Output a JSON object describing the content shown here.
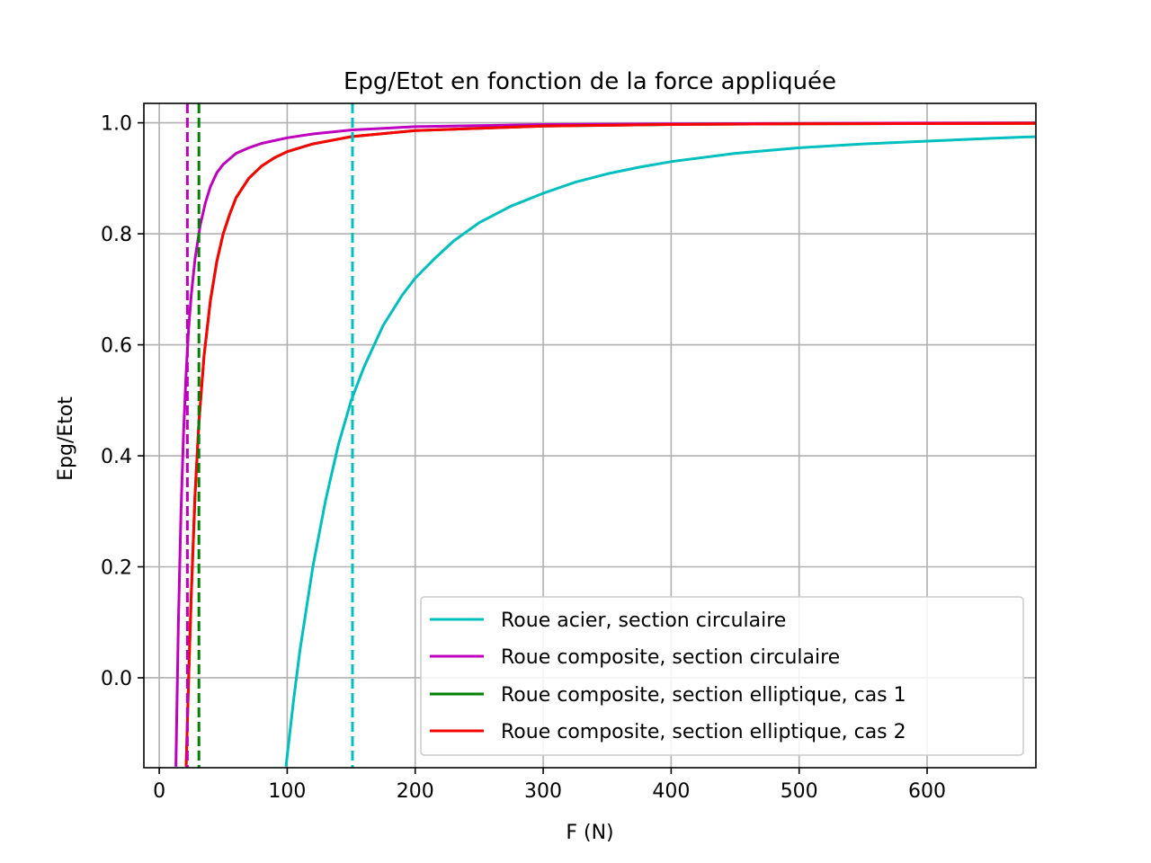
{
  "chart_data": {
    "type": "line",
    "title": "Epg/Etot en fonction de la force appliquée",
    "xlabel": "F (N)",
    "ylabel": "Epg/Etot",
    "xlim": [
      -12,
      685
    ],
    "ylim": [
      -0.162,
      1.035
    ],
    "grid": true,
    "legend_position": "lower right",
    "x_ticks": [
      0,
      100,
      200,
      300,
      400,
      500,
      600
    ],
    "x_tick_labels": [
      "0",
      "100",
      "200",
      "300",
      "400",
      "500",
      "600"
    ],
    "y_ticks": [
      0.0,
      0.2,
      0.4,
      0.6,
      0.8,
      1.0
    ],
    "y_tick_labels": [
      "0.0",
      "0.2",
      "0.4",
      "0.6",
      "0.8",
      "1.0"
    ],
    "series": [
      {
        "name": "Roue acier, section circulaire",
        "color": "#00bfbf",
        "x": [
          99,
          105,
          110,
          120,
          130,
          140,
          150,
          160,
          175,
          190,
          200,
          215,
          230,
          250,
          275,
          300,
          325,
          350,
          375,
          400,
          450,
          500,
          550,
          600,
          650,
          685
        ],
        "y": [
          -0.16,
          -0.04,
          0.05,
          0.2,
          0.32,
          0.42,
          0.5,
          0.56,
          0.635,
          0.69,
          0.72,
          0.755,
          0.787,
          0.82,
          0.85,
          0.873,
          0.893,
          0.908,
          0.92,
          0.93,
          0.945,
          0.955,
          0.962,
          0.967,
          0.972,
          0.975
        ]
      },
      {
        "name": "Roue composite, section circulaire",
        "color": "#bf00bf",
        "x": [
          13,
          15,
          17,
          19,
          21,
          23,
          25,
          28,
          32,
          36,
          40,
          45,
          50,
          60,
          70,
          80,
          100,
          120,
          150,
          200,
          300,
          400,
          500,
          685
        ],
        "y": [
          -0.16,
          0.1,
          0.3,
          0.44,
          0.55,
          0.63,
          0.69,
          0.755,
          0.815,
          0.855,
          0.885,
          0.91,
          0.925,
          0.945,
          0.955,
          0.963,
          0.973,
          0.98,
          0.987,
          0.993,
          0.997,
          0.998,
          0.999,
          1.0
        ]
      },
      {
        "name": "Roue composite, section elliptique, cas 1",
        "color": "#008000",
        "x": [
          21,
          23,
          25,
          28,
          31,
          35,
          40,
          45,
          50,
          55,
          60,
          70,
          80,
          90,
          100,
          120,
          150,
          200,
          300,
          400,
          500,
          685
        ],
        "y": [
          -0.16,
          0.0,
          0.15,
          0.33,
          0.46,
          0.58,
          0.68,
          0.75,
          0.8,
          0.835,
          0.865,
          0.9,
          0.922,
          0.937,
          0.948,
          0.962,
          0.975,
          0.986,
          0.994,
          0.997,
          0.998,
          0.999
        ]
      },
      {
        "name": "Roue composite, section elliptique, cas 2",
        "color": "#ff0000",
        "x": [
          21,
          23,
          25,
          28,
          31,
          35,
          40,
          45,
          50,
          55,
          60,
          70,
          80,
          90,
          100,
          120,
          150,
          200,
          300,
          400,
          500,
          685
        ],
        "y": [
          -0.16,
          0.0,
          0.15,
          0.33,
          0.46,
          0.58,
          0.68,
          0.75,
          0.8,
          0.835,
          0.865,
          0.9,
          0.922,
          0.937,
          0.948,
          0.962,
          0.975,
          0.986,
          0.994,
          0.997,
          0.998,
          0.999
        ]
      }
    ],
    "vertical_lines": [
      {
        "x": 22,
        "color": "#bf00bf",
        "style": "dashed"
      },
      {
        "x": 31,
        "color": "#008000",
        "style": "dashed"
      },
      {
        "x": 151,
        "color": "#00bfbf",
        "style": "dashed"
      }
    ]
  }
}
